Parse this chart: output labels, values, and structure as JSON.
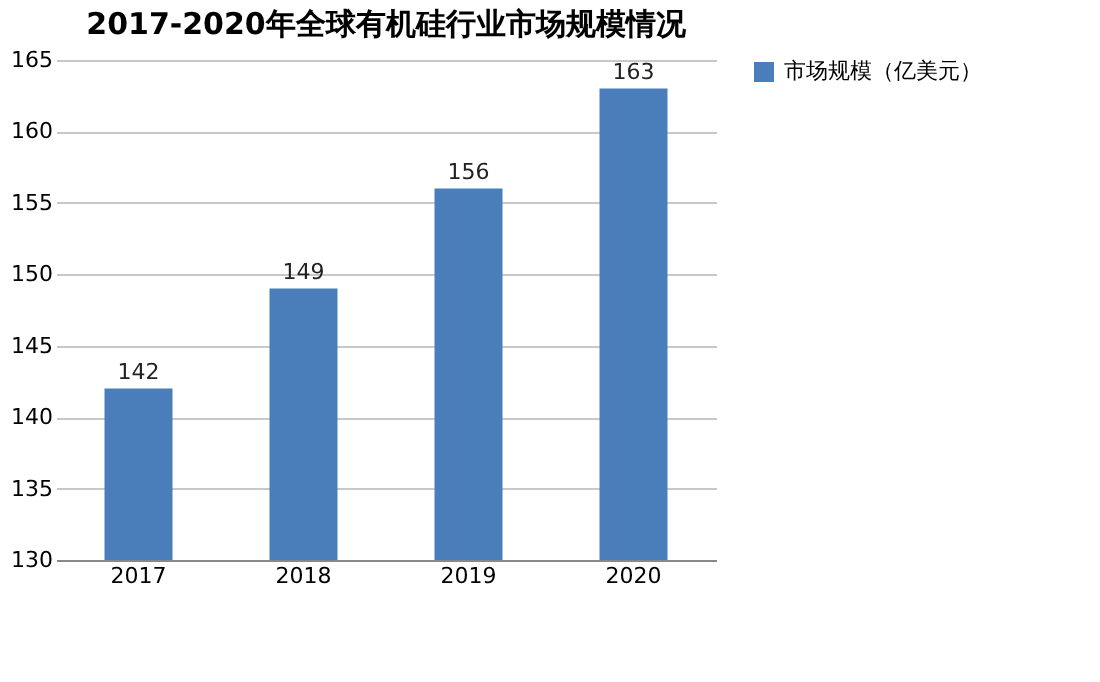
{
  "chart_data": {
    "type": "bar",
    "title": "2017-2020年全球有机硅行业市场规模情况",
    "categories": [
      "2017",
      "2018",
      "2019",
      "2020"
    ],
    "series": [
      {
        "name": "市场规模（亿美元）",
        "color": "#4a7ebb",
        "values": [
          142,
          149,
          156,
          163
        ]
      }
    ],
    "ylim": [
      130,
      165
    ],
    "yticks": [
      130,
      135,
      140,
      145,
      150,
      155,
      160,
      165
    ],
    "grid": "y",
    "legend": "right",
    "data_labels": true
  }
}
